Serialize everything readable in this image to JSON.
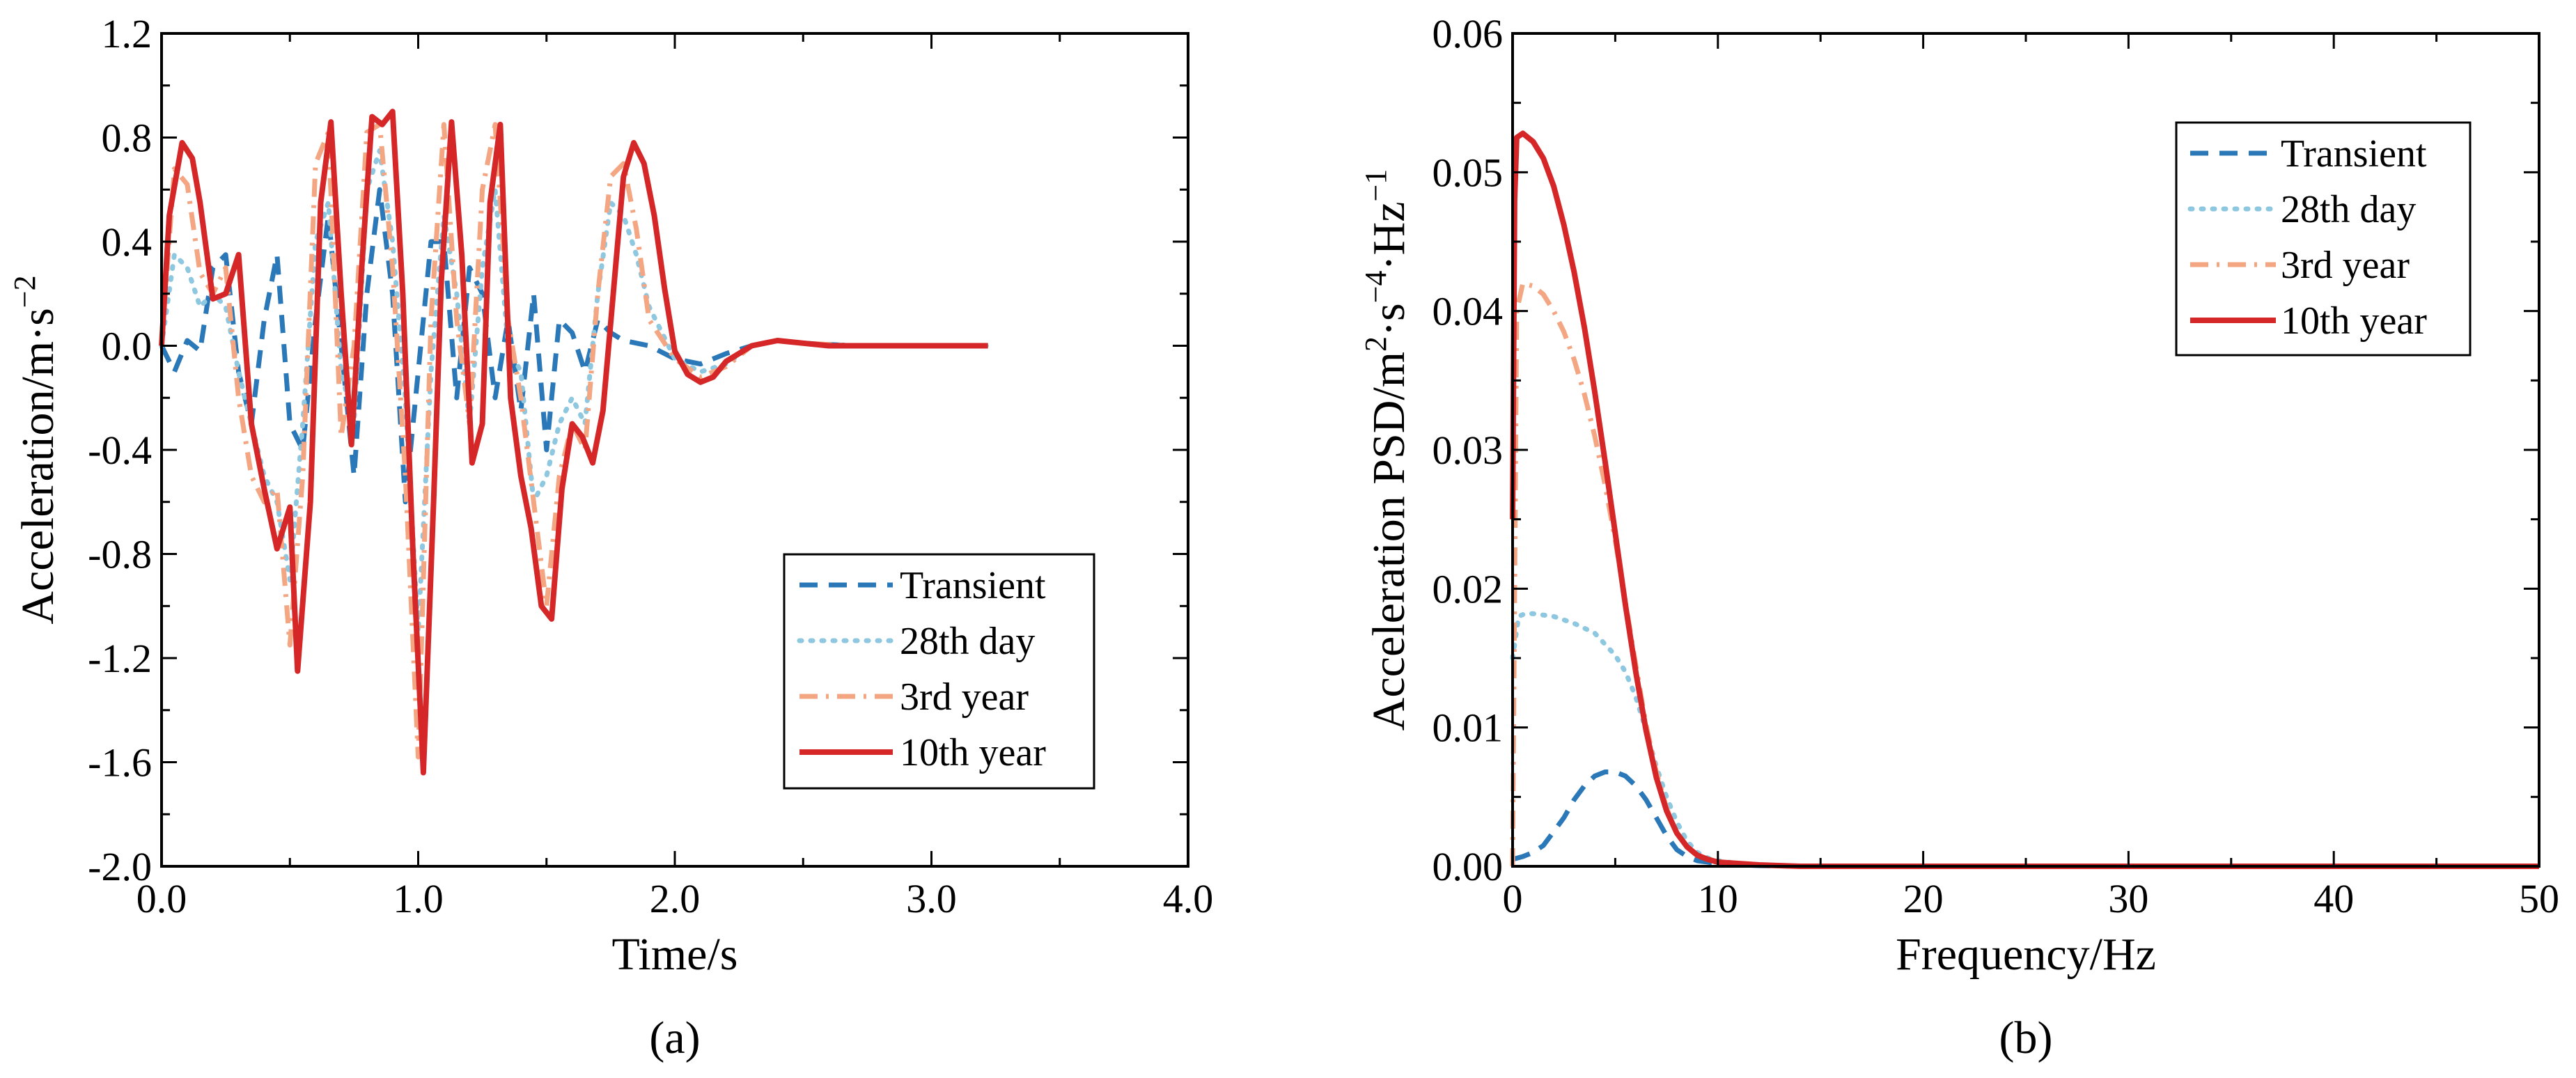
{
  "chart_data": [
    {
      "type": "line",
      "caption": "(a)",
      "xlabel": "Time/s",
      "ylabel_base": "Acceleration/m·s",
      "ylabel_sup": "−2",
      "xlim": [
        0.0,
        4.0
      ],
      "ylim": [
        -2.0,
        1.2
      ],
      "xticks": [
        0.0,
        1.0,
        2.0,
        3.0,
        4.0
      ],
      "xtick_labels": [
        "0.0",
        "1.0",
        "2.0",
        "3.0",
        "4.0"
      ],
      "yticks": [
        -2.0,
        -1.6,
        -1.2,
        -0.8,
        -0.4,
        0.0,
        0.4,
        0.8,
        1.2
      ],
      "ytick_labels": [
        "-2.0",
        "-1.6",
        "-1.2",
        "-0.8",
        "-0.4",
        "0.0",
        "0.4",
        "0.8",
        "1.2"
      ],
      "legend_position": "lower-right",
      "series": [
        {
          "name": "Transient",
          "color": "#2a78b7",
          "style": "dashed",
          "x": [
            0.0,
            0.05,
            0.1,
            0.15,
            0.2,
            0.25,
            0.3,
            0.35,
            0.4,
            0.45,
            0.5,
            0.55,
            0.6,
            0.65,
            0.7,
            0.75,
            0.8,
            0.85,
            0.9,
            0.95,
            1.0,
            1.05,
            1.1,
            1.15,
            1.2,
            1.25,
            1.3,
            1.35,
            1.4,
            1.45,
            1.5,
            1.55,
            1.6,
            1.65,
            1.7,
            1.75,
            1.8,
            1.9,
            2.0,
            2.1,
            2.2,
            2.3,
            2.4,
            2.5,
            2.7,
            3.0,
            3.22
          ],
          "y": [
            0.0,
            -0.1,
            0.02,
            -0.02,
            0.3,
            0.35,
            -0.1,
            -0.3,
            0.1,
            0.35,
            -0.3,
            -0.4,
            0.1,
            0.5,
            0.0,
            -0.5,
            0.2,
            0.6,
            0.2,
            -0.6,
            -0.1,
            0.4,
            0.4,
            -0.2,
            0.3,
            0.2,
            -0.2,
            0.1,
            -0.25,
            0.2,
            -0.4,
            0.1,
            0.05,
            -0.1,
            0.1,
            0.05,
            0.02,
            0.0,
            -0.05,
            -0.07,
            -0.03,
            0.0,
            0.02,
            0.01,
            0.0,
            0.0,
            0.0
          ]
        },
        {
          "name": "28th day",
          "color": "#8ec7e0",
          "style": "dotted",
          "x": [
            0.0,
            0.05,
            0.1,
            0.15,
            0.2,
            0.25,
            0.3,
            0.35,
            0.4,
            0.45,
            0.5,
            0.55,
            0.6,
            0.65,
            0.7,
            0.75,
            0.8,
            0.85,
            0.9,
            0.95,
            1.0,
            1.05,
            1.1,
            1.15,
            1.2,
            1.25,
            1.3,
            1.35,
            1.4,
            1.45,
            1.5,
            1.55,
            1.6,
            1.65,
            1.7,
            1.75,
            1.8,
            1.85,
            1.9,
            2.0,
            2.1,
            2.2,
            2.3,
            2.4,
            2.5,
            2.7,
            3.0,
            3.22
          ],
          "y": [
            0.0,
            0.35,
            0.3,
            0.15,
            0.2,
            0.15,
            -0.1,
            -0.3,
            -0.5,
            -0.6,
            -0.9,
            -0.3,
            0.4,
            0.55,
            -0.1,
            -0.3,
            0.6,
            0.75,
            0.4,
            -0.2,
            -1.1,
            -0.1,
            0.5,
            0.2,
            -0.3,
            0.3,
            0.6,
            0.0,
            -0.1,
            -0.6,
            -0.5,
            -0.3,
            -0.2,
            -0.3,
            0.2,
            0.55,
            0.5,
            0.35,
            0.15,
            -0.05,
            -0.1,
            -0.07,
            0.0,
            0.02,
            0.01,
            0.0,
            0.0,
            0.0
          ]
        },
        {
          "name": "3rd year",
          "color": "#f4a582",
          "style": "dashdot",
          "x": [
            0.0,
            0.05,
            0.1,
            0.15,
            0.2,
            0.25,
            0.3,
            0.35,
            0.4,
            0.45,
            0.5,
            0.55,
            0.6,
            0.65,
            0.7,
            0.75,
            0.8,
            0.85,
            0.9,
            0.95,
            1.0,
            1.05,
            1.1,
            1.15,
            1.2,
            1.25,
            1.3,
            1.35,
            1.4,
            1.45,
            1.5,
            1.55,
            1.6,
            1.65,
            1.7,
            1.75,
            1.8,
            1.85,
            1.9,
            2.0,
            2.1,
            2.2,
            2.3,
            2.4,
            2.5,
            2.7,
            3.0,
            3.22
          ],
          "y": [
            0.0,
            0.68,
            0.62,
            0.28,
            0.2,
            0.3,
            -0.2,
            -0.5,
            -0.6,
            -0.55,
            -1.15,
            -0.5,
            0.7,
            0.82,
            -0.35,
            0.0,
            0.82,
            0.85,
            0.3,
            -0.5,
            -1.58,
            0.1,
            0.85,
            0.1,
            -0.3,
            0.6,
            0.85,
            0.1,
            -0.2,
            -0.6,
            -1.0,
            -0.5,
            -0.3,
            -0.4,
            0.2,
            0.65,
            0.7,
            0.45,
            0.1,
            -0.05,
            -0.12,
            -0.08,
            0.0,
            0.02,
            0.01,
            0.0,
            0.0,
            0.0
          ]
        },
        {
          "name": "10th year",
          "color": "#d62728",
          "style": "solid",
          "x": [
            0.0,
            0.03,
            0.08,
            0.12,
            0.15,
            0.2,
            0.25,
            0.3,
            0.35,
            0.4,
            0.45,
            0.5,
            0.53,
            0.58,
            0.62,
            0.66,
            0.7,
            0.74,
            0.78,
            0.82,
            0.86,
            0.9,
            0.94,
            0.98,
            1.02,
            1.06,
            1.09,
            1.13,
            1.17,
            1.21,
            1.25,
            1.28,
            1.32,
            1.36,
            1.4,
            1.44,
            1.48,
            1.52,
            1.56,
            1.6,
            1.64,
            1.68,
            1.72,
            1.76,
            1.8,
            1.84,
            1.88,
            1.92,
            1.96,
            2.0,
            2.05,
            2.1,
            2.15,
            2.2,
            2.3,
            2.4,
            2.5,
            2.6,
            2.8,
            3.0,
            3.22
          ],
          "y": [
            0.0,
            0.5,
            0.78,
            0.72,
            0.55,
            0.18,
            0.2,
            0.35,
            -0.3,
            -0.55,
            -0.78,
            -0.62,
            -1.25,
            -0.6,
            0.55,
            0.86,
            0.2,
            -0.38,
            0.3,
            0.88,
            0.85,
            0.9,
            0.2,
            -0.8,
            -1.64,
            -0.6,
            0.25,
            0.86,
            0.35,
            -0.45,
            -0.3,
            0.55,
            0.85,
            -0.2,
            -0.5,
            -0.7,
            -1.0,
            -1.05,
            -0.55,
            -0.3,
            -0.35,
            -0.45,
            -0.25,
            0.2,
            0.65,
            0.78,
            0.7,
            0.5,
            0.22,
            -0.02,
            -0.11,
            -0.14,
            -0.12,
            -0.06,
            0.0,
            0.02,
            0.01,
            0.0,
            0.0,
            0.0,
            0.0
          ]
        }
      ]
    },
    {
      "type": "line",
      "caption": "(b)",
      "xlabel": "Frequency/Hz",
      "ylabel_base": "Acceleration PSD/m",
      "ylabel_mid1": "·s",
      "ylabel_mid2": "·Hz",
      "ylabel_sup1": "2",
      "ylabel_sup2": "−4",
      "ylabel_sup3": "−1",
      "xlim": [
        0,
        50
      ],
      "ylim": [
        0.0,
        0.06
      ],
      "xticks": [
        0,
        10,
        20,
        30,
        40,
        50
      ],
      "xtick_labels": [
        "0",
        "10",
        "20",
        "30",
        "40",
        "50"
      ],
      "yticks": [
        0.0,
        0.01,
        0.02,
        0.03,
        0.04,
        0.05,
        0.06
      ],
      "ytick_labels": [
        "0.00",
        "0.01",
        "0.02",
        "0.03",
        "0.04",
        "0.05",
        "0.06"
      ],
      "legend_position": "top-right",
      "series": [
        {
          "name": "Transient",
          "color": "#2a78b7",
          "style": "dashed",
          "x": [
            0,
            0.5,
            1,
            1.5,
            2,
            2.5,
            3,
            3.5,
            4,
            4.5,
            5,
            5.5,
            6,
            6.5,
            7,
            7.5,
            8,
            8.5,
            9,
            9.5,
            10,
            11,
            12,
            14,
            20,
            30,
            40,
            50
          ],
          "y": [
            0.0005,
            0.0007,
            0.001,
            0.0015,
            0.0025,
            0.0035,
            0.0048,
            0.0058,
            0.0065,
            0.0068,
            0.0068,
            0.0065,
            0.0058,
            0.0048,
            0.0035,
            0.0022,
            0.0012,
            0.0007,
            0.0004,
            0.0003,
            0.0002,
            0.0001,
            5e-05,
            0.0,
            0.0,
            0.0,
            0.0,
            0.0
          ]
        },
        {
          "name": "28th day",
          "color": "#8ec7e0",
          "style": "dotted",
          "x": [
            0,
            0.3,
            0.6,
            1,
            2,
            3,
            4,
            5,
            5.5,
            6,
            6.5,
            7,
            7.5,
            8,
            8.5,
            9,
            9.5,
            10,
            11,
            12,
            14,
            20,
            30,
            40,
            50
          ],
          "y": [
            0.015,
            0.018,
            0.0182,
            0.0182,
            0.018,
            0.0175,
            0.0168,
            0.0152,
            0.014,
            0.0122,
            0.0098,
            0.0072,
            0.005,
            0.0032,
            0.0018,
            0.001,
            0.0006,
            0.0004,
            0.0002,
            0.0001,
            0.0,
            0.0,
            0.0,
            0.0,
            0.0
          ]
        },
        {
          "name": "3rd year",
          "color": "#f4a582",
          "style": "dashdot",
          "x": [
            0,
            0.2,
            0.5,
            1,
            1.5,
            2,
            2.5,
            3,
            3.5,
            4,
            4.5,
            5,
            5.5,
            6,
            6.5,
            7,
            7.5,
            8,
            8.5,
            9,
            9.5,
            10,
            11,
            12,
            14,
            20,
            30,
            40,
            50
          ],
          "y": [
            0.0,
            0.04,
            0.042,
            0.0418,
            0.0412,
            0.04,
            0.0385,
            0.0365,
            0.034,
            0.031,
            0.0275,
            0.0235,
            0.019,
            0.0145,
            0.0102,
            0.0068,
            0.0042,
            0.0024,
            0.0014,
            0.0008,
            0.0005,
            0.0003,
            0.0002,
            0.0001,
            0.0,
            0.0,
            0.0,
            0.0,
            0.0
          ]
        },
        {
          "name": "10th year",
          "color": "#d62728",
          "style": "solid",
          "x": [
            0,
            0.1,
            0.2,
            0.5,
            1,
            1.5,
            2,
            2.5,
            3,
            3.5,
            4,
            4.5,
            5,
            5.5,
            6,
            6.5,
            7,
            7.5,
            8,
            8.5,
            9,
            9.5,
            10,
            11,
            12,
            14,
            20,
            30,
            40,
            50
          ],
          "y": [
            0.025,
            0.048,
            0.0525,
            0.0528,
            0.0522,
            0.051,
            0.049,
            0.0462,
            0.0428,
            0.0388,
            0.0342,
            0.0292,
            0.024,
            0.0188,
            0.014,
            0.0098,
            0.0064,
            0.004,
            0.0024,
            0.0014,
            0.0008,
            0.0005,
            0.0003,
            0.0002,
            0.0001,
            0.0,
            0.0,
            0.0,
            0.0,
            0.0
          ]
        }
      ]
    }
  ]
}
